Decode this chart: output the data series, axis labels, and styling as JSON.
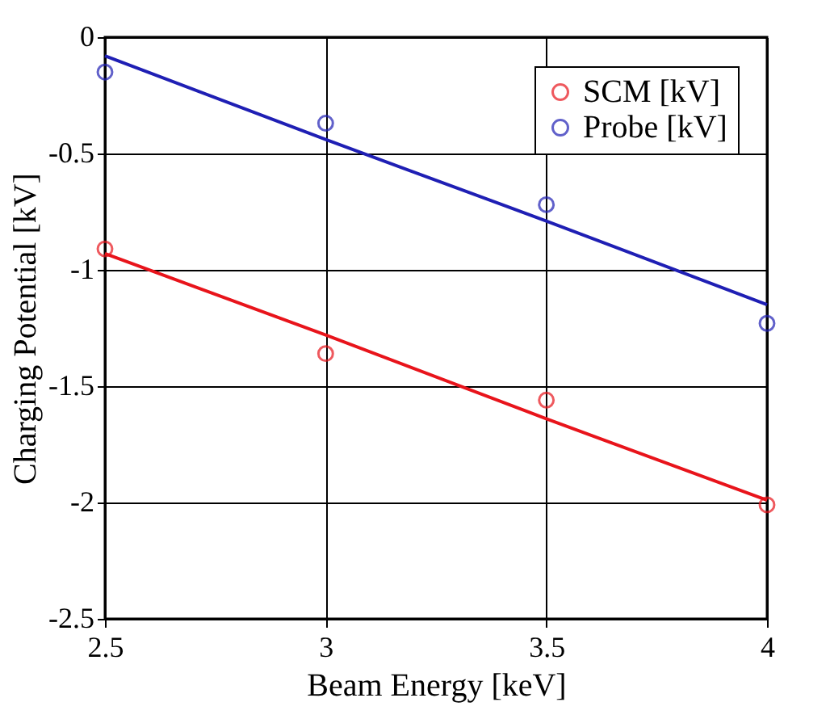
{
  "chart_data": {
    "type": "scatter",
    "xlabel": "Beam Energy [keV]",
    "ylabel": "Charging Potential [kV]",
    "x": [
      2.5,
      3,
      3.5,
      4
    ],
    "series": [
      {
        "name": "SCM [kV]",
        "color": "#e8141b",
        "values": [
          -0.91,
          -1.36,
          -1.56,
          -2.01
        ]
      },
      {
        "name": "Probe [kV]",
        "color": "#1f1fb4",
        "values": [
          -0.15,
          -0.37,
          -0.72,
          -1.23
        ]
      },
      {
        "type": "line",
        "marker": "none",
        "color": "#e8141b",
        "values": [
          -0.93,
          -1.28,
          -1.64,
          -1.99
        ]
      },
      {
        "type": "line",
        "marker": "none",
        "color": "#1f1fb4",
        "values": [
          -0.08,
          -0.44,
          -0.79,
          -1.15
        ]
      }
    ],
    "xlim": [
      2.5,
      4
    ],
    "xticks": [
      2.5,
      3,
      3.5,
      4
    ],
    "ylim": [
      -2.5,
      0
    ],
    "yticks": [
      -2.5,
      -2,
      -1.5,
      -1,
      -0.5,
      0
    ],
    "grid": true,
    "legend": "top right",
    "marker": "circle",
    "line_style": "solid"
  }
}
